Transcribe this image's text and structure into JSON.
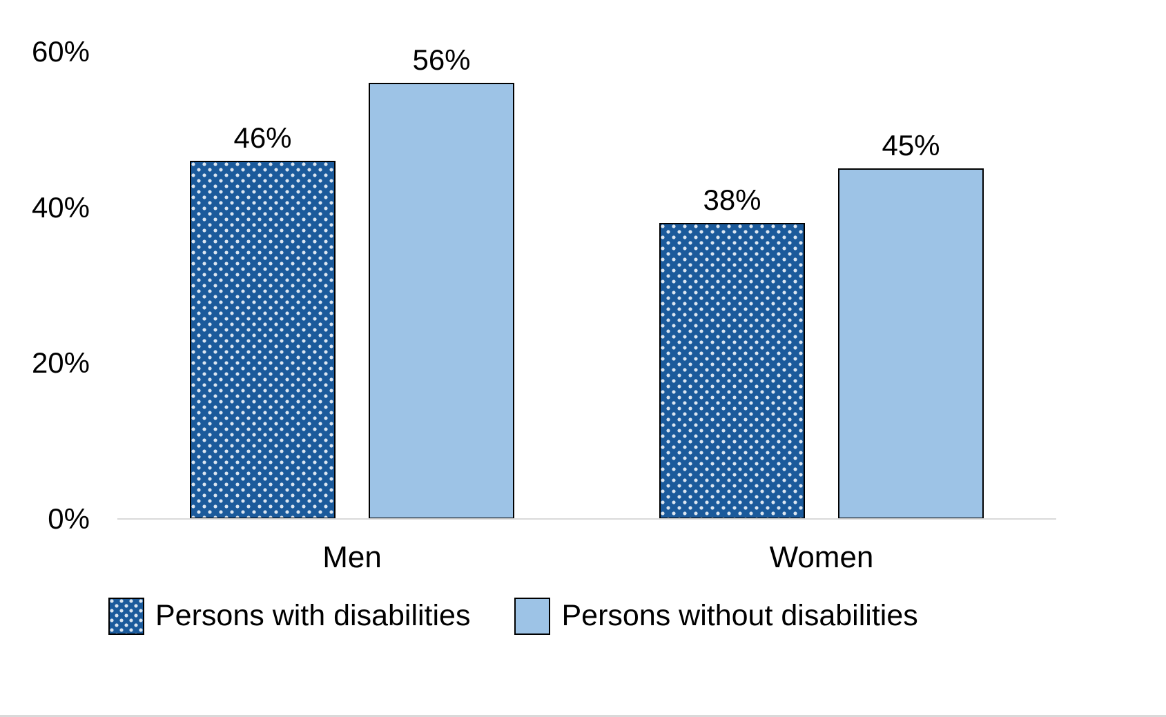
{
  "page": {
    "background": "#ffffff"
  },
  "chart_data": {
    "type": "bar",
    "title": "",
    "xlabel": "",
    "ylabel": "",
    "categories": [
      "Men",
      "Women"
    ],
    "series": [
      {
        "name": "Persons with disabilities",
        "values": [
          46,
          38
        ],
        "fill": "#1b5a9b",
        "pattern": "dots",
        "pattern_dot_color": "#dce6f1",
        "border": "#000000"
      },
      {
        "name": "Persons without disabilities",
        "values": [
          56,
          45
        ],
        "fill": "#9dc3e6",
        "pattern": "solid",
        "border": "#000000"
      }
    ],
    "data_labels": [
      "46%",
      "56%",
      "38%",
      "45%"
    ],
    "value_suffix": "%",
    "y_axis": {
      "min": 0,
      "max": 60,
      "ticks": [
        {
          "value": 0,
          "label": "0%"
        },
        {
          "value": 20,
          "label": "20%"
        },
        {
          "value": 40,
          "label": "40%"
        },
        {
          "value": 60,
          "label": "60%"
        }
      ]
    },
    "grid": false,
    "legend_position": "bottom",
    "axis_line_color": "#d9d9d9",
    "text_color": "#000000"
  }
}
